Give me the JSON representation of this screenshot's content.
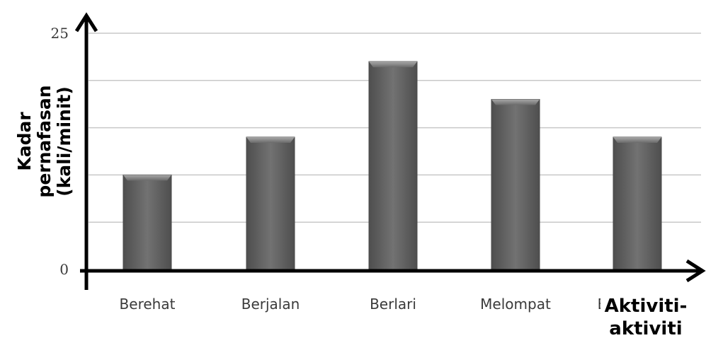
{
  "chart_data": {
    "type": "bar",
    "categories": [
      "Berehat",
      "Berjalan",
      "Berlari",
      "Melompat",
      "Berehat"
    ],
    "category_labels_shown": [
      "Berehat",
      "Berjalan",
      "Berlari",
      "Melompat",
      "E"
    ],
    "values": [
      10,
      14,
      22,
      18,
      14
    ],
    "ylim": [
      0,
      25
    ],
    "yticks_labeled": [
      0,
      25
    ],
    "gridlines": [
      5,
      10,
      15,
      20,
      25
    ],
    "grid": true,
    "ylabel_lines": [
      "Kadar",
      "pernafasan",
      "(kali/minit)"
    ],
    "xlabel_lines": [
      "Aktiviti-",
      "aktiviti"
    ],
    "colors": {
      "bar_top": "#5e5e5e",
      "bar_mid": "#707070",
      "bar_edge": "#4a4a4a",
      "bar_cap": "#9a9a9a",
      "grid": "#c8c8c8",
      "axis": "#000000"
    }
  }
}
